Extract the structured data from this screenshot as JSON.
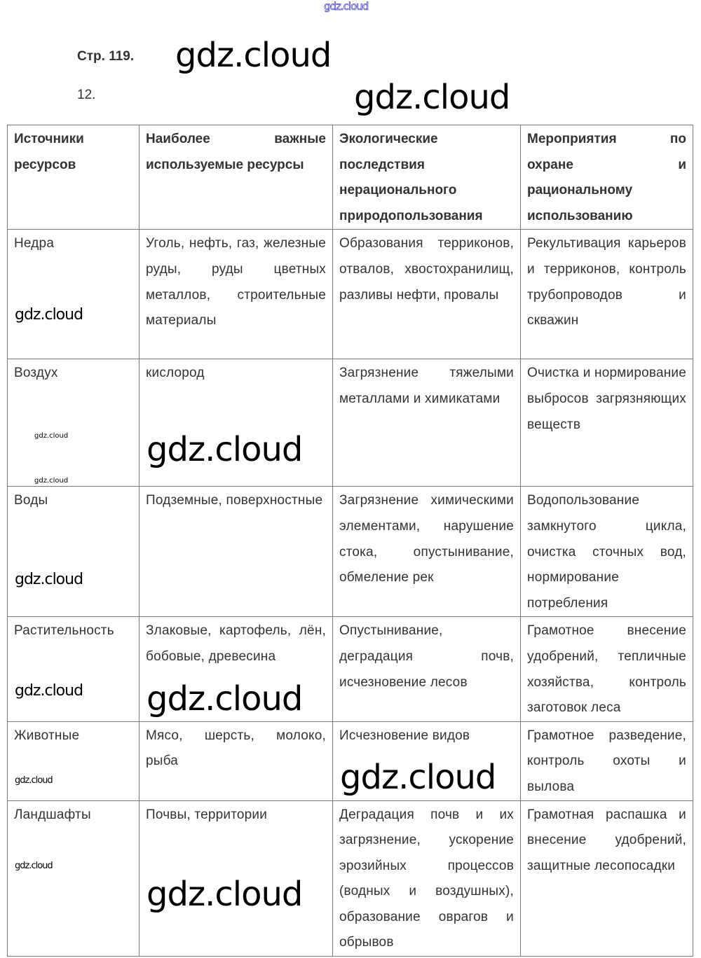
{
  "watermark": "gdz.cloud",
  "page_ref": "Стр. 119.",
  "exercise_number": "12.",
  "table": {
    "headers": [
      "Источники ресурсов",
      "Наиболее важные используемые ресурсы",
      "Экологические последствия нерационального природопользования",
      "Мероприятия по охране и рациональному использованию"
    ],
    "rows": [
      [
        "Недра",
        "Уголь, нефть, газ, железные руды, руды цветных металлов, строительные материалы",
        "Образования терриконов, отвалов, хвостохранилищ, разливы нефти, провалы",
        "Рекультивация карьеров и терриконов, контроль трубопроводов и скважин"
      ],
      [
        "Воздух",
        "кислород",
        "Загрязнение тяжелыми металлами и химикатами",
        "Очистка и нормирование выбросов загрязняющих веществ"
      ],
      [
        "Воды",
        "Подземные, поверхностные",
        "Загрязнение химическими элементами, нарушение стока, опустынивание, обмеление рек",
        "Водопользование замкнутого цикла, очистка сточных вод, нормирование потребления"
      ],
      [
        "Растительность",
        "Злаковые, картофель, лён, бобовые, древесина",
        "Опустынивание, деградация почв, исчезновение лесов",
        "Грамотное внесение удобрений, тепличные хозяйства, контроль заготовок леса"
      ],
      [
        "Животные",
        "Мясо, шерсть, молоко, рыба",
        "Исчезновение видов",
        "Грамотное разведение, контроль охоты и вылова"
      ],
      [
        "Ландшафты",
        "Почвы, территории",
        "Деградация почв и их загрязнение, ускорение эрозийных процессов (водных и воздушных), образование оврагов и обрывов",
        "Грамотная распашка и внесение удобрений, защитные лесопосадки"
      ]
    ]
  }
}
